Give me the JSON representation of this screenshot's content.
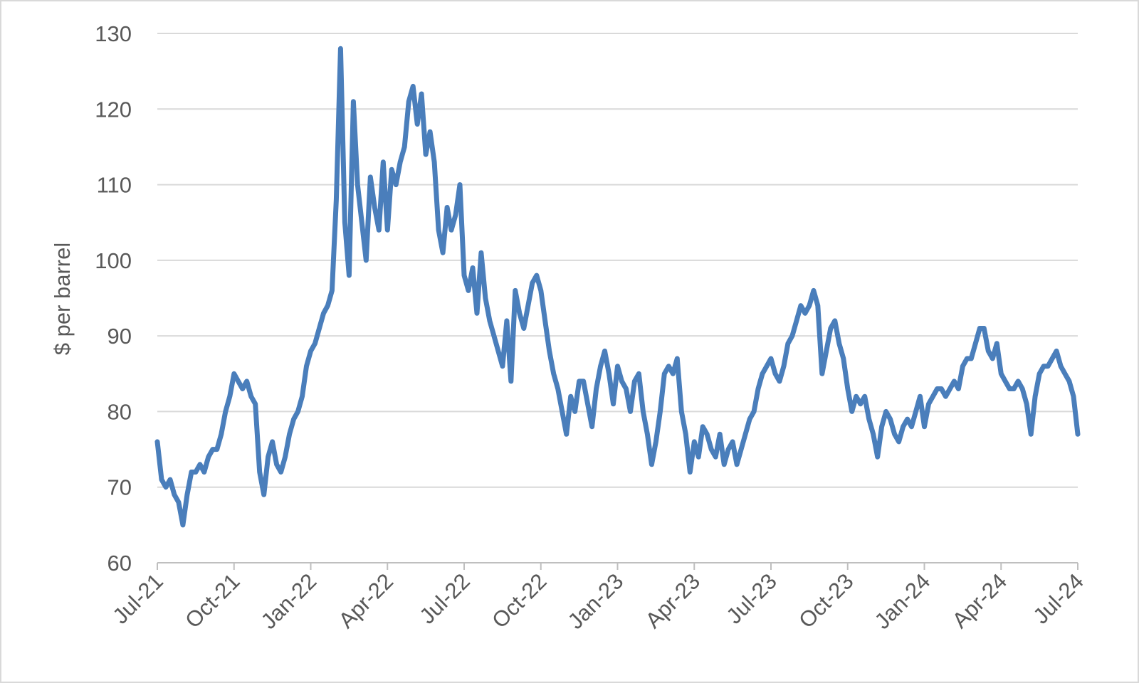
{
  "chart_data": {
    "type": "line",
    "y_label": "$ per barrel",
    "color": "#4a7ebb",
    "grid": true,
    "ylim": [
      60,
      130
    ],
    "yticks": [
      60,
      70,
      80,
      90,
      100,
      110,
      120,
      130
    ],
    "categories": [
      "Jul-21",
      null,
      null,
      null,
      null,
      null,
      null,
      null,
      null,
      null,
      null,
      null,
      null,
      null,
      null,
      null,
      null,
      null,
      "Oct-21",
      null,
      null,
      null,
      null,
      null,
      null,
      null,
      null,
      null,
      null,
      null,
      null,
      null,
      null,
      null,
      null,
      null,
      "Jan-22",
      null,
      null,
      null,
      null,
      null,
      null,
      null,
      null,
      null,
      null,
      null,
      null,
      null,
      null,
      null,
      null,
      null,
      "Apr-22",
      null,
      null,
      null,
      null,
      null,
      null,
      null,
      null,
      null,
      null,
      null,
      null,
      null,
      null,
      null,
      null,
      null,
      "Jul-22",
      null,
      null,
      null,
      null,
      null,
      null,
      null,
      null,
      null,
      null,
      null,
      null,
      null,
      null,
      null,
      null,
      null,
      "Oct-22",
      null,
      null,
      null,
      null,
      null,
      null,
      null,
      null,
      null,
      null,
      null,
      null,
      null,
      null,
      null,
      null,
      null,
      "Jan-23",
      null,
      null,
      null,
      null,
      null,
      null,
      null,
      null,
      null,
      null,
      null,
      null,
      null,
      null,
      null,
      null,
      null,
      "Apr-23",
      null,
      null,
      null,
      null,
      null,
      null,
      null,
      null,
      null,
      null,
      null,
      null,
      null,
      null,
      null,
      null,
      null,
      "Jul-23",
      null,
      null,
      null,
      null,
      null,
      null,
      null,
      null,
      null,
      null,
      null,
      null,
      null,
      null,
      null,
      null,
      null,
      "Oct-23",
      null,
      null,
      null,
      null,
      null,
      null,
      null,
      null,
      null,
      null,
      null,
      null,
      null,
      null,
      null,
      null,
      null,
      "Jan-24",
      null,
      null,
      null,
      null,
      null,
      null,
      null,
      null,
      null,
      null,
      null,
      null,
      null,
      null,
      null,
      null,
      null,
      "Apr-24",
      null,
      null,
      null,
      null,
      null,
      null,
      null,
      null,
      null,
      null,
      null,
      null,
      null,
      null,
      null,
      null,
      null,
      "Jul-24"
    ],
    "values": [
      76,
      71,
      70,
      71,
      69,
      68,
      65,
      69,
      72,
      72,
      73,
      72,
      74,
      75,
      75,
      77,
      80,
      82,
      85,
      84,
      83,
      84,
      82,
      81,
      72,
      69,
      74,
      76,
      73,
      72,
      74,
      77,
      79,
      80,
      82,
      86,
      88,
      89,
      91,
      93,
      94,
      96,
      108,
      128,
      105,
      98,
      121,
      110,
      105,
      100,
      111,
      107,
      104,
      113,
      104,
      112,
      110,
      113,
      115,
      121,
      123,
      118,
      122,
      114,
      117,
      113,
      104,
      101,
      107,
      104,
      106,
      110,
      98,
      96,
      99,
      93,
      101,
      95,
      92,
      90,
      88,
      86,
      92,
      84,
      96,
      93,
      91,
      94,
      97,
      98,
      96,
      92,
      88,
      85,
      83,
      80,
      77,
      82,
      80,
      84,
      84,
      81,
      78,
      83,
      86,
      88,
      85,
      81,
      86,
      84,
      83,
      80,
      84,
      85,
      80,
      77,
      73,
      76,
      80,
      85,
      86,
      85,
      87,
      80,
      77,
      72,
      76,
      74,
      78,
      77,
      75,
      74,
      77,
      73,
      75,
      76,
      73,
      75,
      77,
      79,
      80,
      83,
      85,
      86,
      87,
      85,
      84,
      86,
      89,
      90,
      92,
      94,
      93,
      94,
      96,
      94,
      85,
      88,
      91,
      92,
      89,
      87,
      83,
      80,
      82,
      81,
      82,
      79,
      77,
      74,
      78,
      80,
      79,
      77,
      76,
      78,
      79,
      78,
      80,
      82,
      78,
      81,
      82,
      83,
      83,
      82,
      83,
      84,
      83,
      86,
      87,
      87,
      89,
      91,
      91,
      88,
      87,
      89,
      85,
      84,
      83,
      83,
      84,
      83,
      81,
      77,
      82,
      85,
      86,
      86,
      87,
      88,
      86,
      85,
      84,
      82,
      77
    ]
  }
}
